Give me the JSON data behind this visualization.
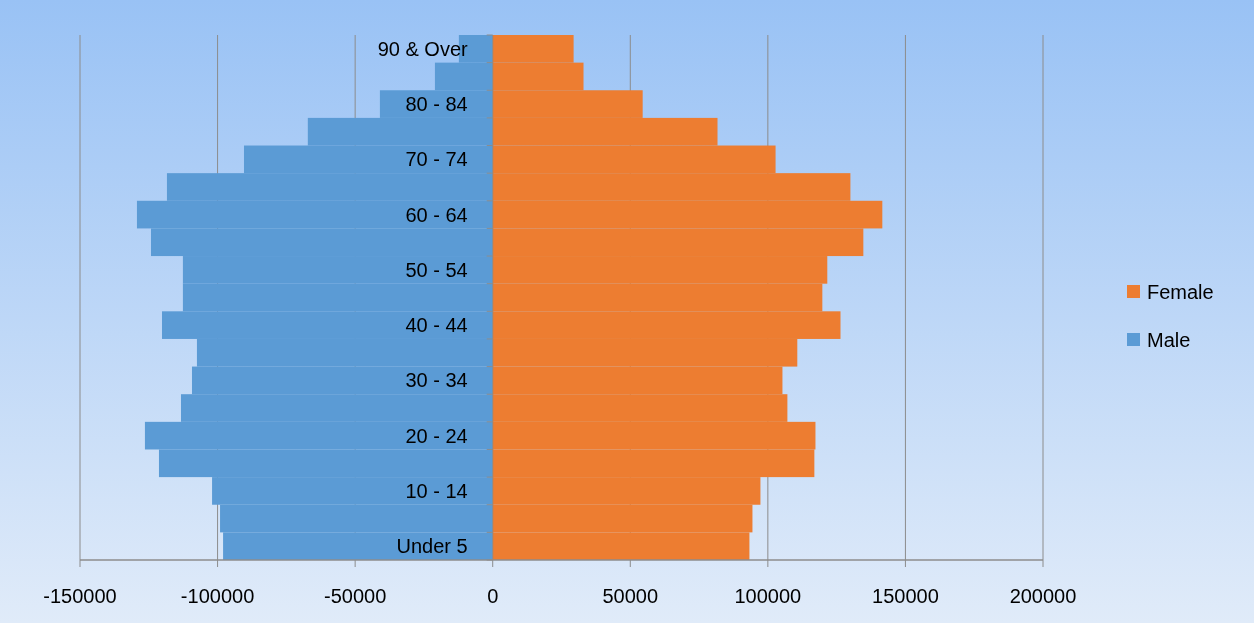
{
  "chart_data": {
    "type": "bar",
    "orientation": "horizontal",
    "stacked": true,
    "categories": [
      "90 & Over",
      null,
      "80 - 84",
      null,
      "70 - 74",
      null,
      "60 - 64",
      null,
      "50 - 54",
      null,
      "40 - 44",
      null,
      "30 - 34",
      null,
      "20 - 24",
      null,
      "10 - 14",
      null,
      "Under 5"
    ],
    "series": [
      {
        "name": "Female",
        "color": "#ed7d31",
        "values": [
          29400,
          33000,
          54500,
          81700,
          102800,
          130000,
          141600,
          134700,
          121600,
          119800,
          126400,
          110700,
          105300,
          107100,
          117300,
          116900,
          97300,
          94400,
          93300
        ]
      },
      {
        "name": "Male",
        "color": "#5b9bd5",
        "values": [
          -12300,
          -21000,
          -41000,
          -67200,
          -90400,
          -118400,
          -129300,
          -124200,
          -112600,
          -112600,
          -120200,
          -107500,
          -109300,
          -113300,
          -126400,
          -121300,
          -102000,
          -99100,
          -98000
        ]
      }
    ],
    "xlim": [
      -150000,
      200000
    ],
    "xticks": [
      -150000,
      -100000,
      -50000,
      0,
      50000,
      100000,
      150000,
      200000
    ],
    "grid": "x",
    "legend": "right"
  }
}
